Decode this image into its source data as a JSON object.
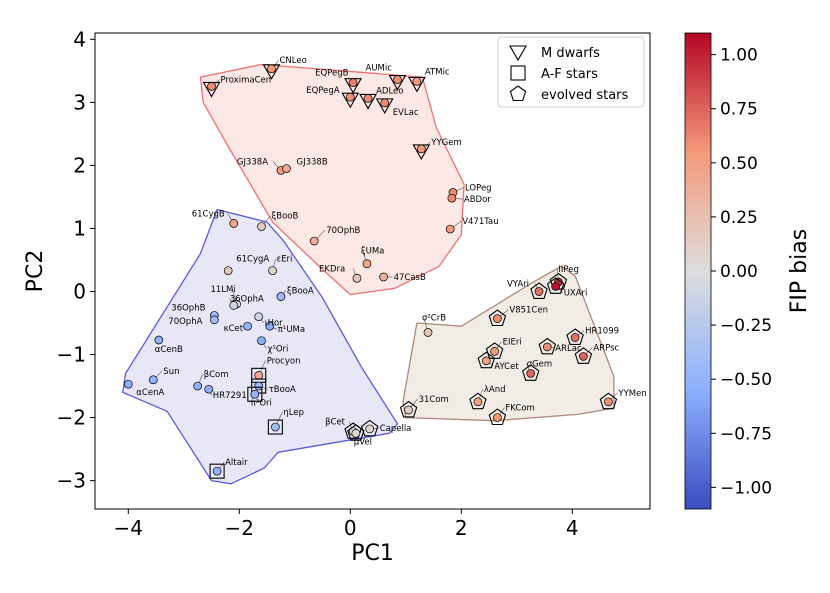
{
  "chart_data": {
    "type": "scatter",
    "xlabel": "PC1",
    "ylabel": "PC2",
    "xlim": [
      -4.6,
      5.4
    ],
    "ylim": [
      -3.45,
      4.1
    ],
    "xticks": [
      {
        "v": -4,
        "label": "−4"
      },
      {
        "v": -2,
        "label": "−2"
      },
      {
        "v": 0,
        "label": "0"
      },
      {
        "v": 2,
        "label": "2"
      },
      {
        "v": 4,
        "label": "4"
      }
    ],
    "yticks": [
      {
        "v": -3,
        "label": "−3"
      },
      {
        "v": -2,
        "label": "−2"
      },
      {
        "v": -1,
        "label": "−1"
      },
      {
        "v": 0,
        "label": "0"
      },
      {
        "v": 1,
        "label": "1"
      },
      {
        "v": 2,
        "label": "2"
      },
      {
        "v": 3,
        "label": "3"
      },
      {
        "v": 4,
        "label": "4"
      }
    ],
    "colorbar": {
      "label": "FIP bias",
      "range": [
        -1.1,
        1.1
      ],
      "colormap": "coolwarm",
      "ticks": [
        {
          "v": 1.0,
          "label": "1.00"
        },
        {
          "v": 0.75,
          "label": "0.75"
        },
        {
          "v": 0.5,
          "label": "0.50"
        },
        {
          "v": 0.25,
          "label": "0.25"
        },
        {
          "v": 0.0,
          "label": "0.00"
        },
        {
          "v": -0.25,
          "label": "−0.25"
        },
        {
          "v": -0.5,
          "label": "−0.50"
        },
        {
          "v": -0.75,
          "label": "−0.75"
        },
        {
          "v": -1.0,
          "label": "−1.00"
        }
      ]
    },
    "legend": {
      "position": "top-right",
      "entries": [
        {
          "marker": "triangle-down",
          "label": "M dwarfs"
        },
        {
          "marker": "square",
          "label": "A-F stars"
        },
        {
          "marker": "pentagon",
          "label": "evolved stars"
        }
      ]
    },
    "groups": [
      {
        "fill": "#fbe4e0",
        "edge": "#f07070",
        "hull": [
          [
            -2.7,
            3.4
          ],
          [
            -1.6,
            3.6
          ],
          [
            1.3,
            3.4
          ],
          [
            1.55,
            2.6
          ],
          [
            2.05,
            1.7
          ],
          [
            2.0,
            0.9
          ],
          [
            1.6,
            0.4
          ],
          [
            0.8,
            0.05
          ],
          [
            0.0,
            -0.05
          ],
          [
            -0.5,
            0.35
          ],
          [
            -1.4,
            1.1
          ],
          [
            -2.2,
            2.3
          ],
          [
            -2.65,
            3.0
          ]
        ]
      },
      {
        "fill": "#e3e3f6",
        "edge": "#5a5ae0",
        "hull": [
          [
            -2.4,
            1.3
          ],
          [
            -1.5,
            1.1
          ],
          [
            -1.2,
            0.8
          ],
          [
            -0.5,
            -0.1
          ],
          [
            0.2,
            -1.2
          ],
          [
            0.85,
            -2.1
          ],
          [
            0.7,
            -2.25
          ],
          [
            -0.3,
            -2.4
          ],
          [
            -1.3,
            -2.55
          ],
          [
            -1.55,
            -2.8
          ],
          [
            -2.15,
            -3.05
          ],
          [
            -2.5,
            -3.0
          ],
          [
            -3.3,
            -1.9
          ],
          [
            -4.1,
            -1.6
          ],
          [
            -4.05,
            -1.3
          ],
          [
            -2.7,
            0.6
          ]
        ]
      },
      {
        "fill": "#f0e9e3",
        "edge": "#b08a78",
        "hull": [
          [
            1.2,
            -0.5
          ],
          [
            2.0,
            -0.55
          ],
          [
            3.3,
            0.15
          ],
          [
            3.8,
            0.4
          ],
          [
            4.05,
            0.25
          ],
          [
            4.75,
            -1.35
          ],
          [
            4.75,
            -1.85
          ],
          [
            4.1,
            -1.95
          ],
          [
            2.6,
            -2.05
          ],
          [
            1.0,
            -2.0
          ],
          [
            0.95,
            -1.75
          ]
        ]
      }
    ],
    "points": [
      {
        "name": "ProximaCen",
        "x": -2.5,
        "y": 3.22,
        "marker": "triangle-down",
        "fip": 0.6
      },
      {
        "name": "CNLeo",
        "x": -1.42,
        "y": 3.5,
        "marker": "triangle-down",
        "fip": 0.55
      },
      {
        "name": "EQPegB",
        "x": 0.05,
        "y": 3.28,
        "marker": "triangle-down",
        "fip": 0.65
      },
      {
        "name": "AUMic",
        "x": 0.85,
        "y": 3.33,
        "marker": "triangle-down",
        "fip": 0.6
      },
      {
        "name": "ATMic",
        "x": 1.2,
        "y": 3.3,
        "marker": "triangle-down",
        "fip": 0.55
      },
      {
        "name": "EQPegA",
        "x": 0.0,
        "y": 3.05,
        "marker": "triangle-down",
        "fip": 0.6
      },
      {
        "name": "ADLeo",
        "x": 0.32,
        "y": 3.03,
        "marker": "triangle-down",
        "fip": 0.6
      },
      {
        "name": "EVLac",
        "x": 0.62,
        "y": 2.96,
        "marker": "triangle-down",
        "fip": 0.6
      },
      {
        "name": "YYGem",
        "x": 1.28,
        "y": 2.23,
        "marker": "triangle-down",
        "fip": 0.55
      },
      {
        "name": "GJ338A",
        "x": -1.25,
        "y": 1.92,
        "marker": "circle",
        "fip": 0.55
      },
      {
        "name": "GJ338B",
        "x": -1.15,
        "y": 1.95,
        "marker": "circle",
        "fip": 0.45
      },
      {
        "name": "LOPeg",
        "x": 1.85,
        "y": 1.57,
        "marker": "circle",
        "fip": 0.6
      },
      {
        "name": "ABDor",
        "x": 1.83,
        "y": 1.48,
        "marker": "circle",
        "fip": 0.6
      },
      {
        "name": "V471Tau",
        "x": 1.8,
        "y": 0.99,
        "marker": "circle",
        "fip": 0.55
      },
      {
        "name": "70OphB",
        "x": -0.65,
        "y": 0.8,
        "marker": "circle",
        "fip": 0.4
      },
      {
        "name": "ξUMa",
        "x": 0.3,
        "y": 0.44,
        "marker": "circle",
        "fip": 0.45
      },
      {
        "name": "47CasB",
        "x": 0.6,
        "y": 0.23,
        "marker": "circle",
        "fip": 0.35
      },
      {
        "name": "EKDra",
        "x": 0.12,
        "y": 0.21,
        "marker": "circle",
        "fip": 0.2
      },
      {
        "name": "61CygB",
        "x": -2.1,
        "y": 1.08,
        "marker": "circle",
        "fip": 0.45
      },
      {
        "name": "ξBooB",
        "x": -1.6,
        "y": 1.03,
        "marker": "circle",
        "fip": 0.15
      },
      {
        "name": "61CygA",
        "x": -2.2,
        "y": 0.33,
        "marker": "circle",
        "fip": 0.2
      },
      {
        "name": "εEri",
        "x": -1.4,
        "y": 0.33,
        "marker": "circle",
        "fip": 0.1
      },
      {
        "name": "11LMi",
        "x": -2.05,
        "y": -0.2,
        "marker": "circle",
        "fip": 0.0
      },
      {
        "name": "36OphA",
        "x": -2.1,
        "y": -0.22,
        "marker": "circle",
        "fip": -0.1
      },
      {
        "name": "ξBooA",
        "x": -1.25,
        "y": -0.08,
        "marker": "circle",
        "fip": -0.45
      },
      {
        "name": "36OphB",
        "x": -2.45,
        "y": -0.38,
        "marker": "circle",
        "fip": -0.4
      },
      {
        "name": "70OphA",
        "x": -2.45,
        "y": -0.45,
        "marker": "circle",
        "fip": -0.45
      },
      {
        "name": "ιHor",
        "x": -1.65,
        "y": -0.4,
        "marker": "circle",
        "fip": -0.1
      },
      {
        "name": "κCet",
        "x": -1.85,
        "y": -0.55,
        "marker": "circle",
        "fip": -0.5
      },
      {
        "name": "π¹UMa",
        "x": -1.45,
        "y": -0.55,
        "marker": "circle",
        "fip": -0.55
      },
      {
        "name": "χ¹Ori",
        "x": -1.6,
        "y": -0.78,
        "marker": "circle",
        "fip": -0.55
      },
      {
        "name": "αCenB",
        "x": -3.45,
        "y": -0.77,
        "marker": "circle",
        "fip": -0.55
      },
      {
        "name": "Sun",
        "x": -3.55,
        "y": -1.4,
        "marker": "circle",
        "fip": -0.5
      },
      {
        "name": "αCenA",
        "x": -4.0,
        "y": -1.47,
        "marker": "circle",
        "fip": -0.55
      },
      {
        "name": "βCom",
        "x": -2.75,
        "y": -1.5,
        "marker": "circle",
        "fip": -0.55
      },
      {
        "name": "HR7291",
        "x": -2.55,
        "y": -1.55,
        "marker": "circle",
        "fip": -0.55
      },
      {
        "name": "Procyon",
        "x": -1.65,
        "y": -1.33,
        "marker": "square",
        "fip": 0.45
      },
      {
        "name": "τBooA",
        "x": -1.65,
        "y": -1.5,
        "marker": "square",
        "fip": -0.45
      },
      {
        "name": "π³Ori",
        "x": -1.72,
        "y": -1.63,
        "marker": "square",
        "fip": -0.5
      },
      {
        "name": "ηLep",
        "x": -1.35,
        "y": -2.15,
        "marker": "square",
        "fip": -0.4
      },
      {
        "name": "Altair",
        "x": -2.4,
        "y": -2.85,
        "marker": "square",
        "fip": -0.5
      },
      {
        "name": "βCet",
        "x": 0.05,
        "y": -2.22,
        "marker": "pentagon",
        "fip": 0.1
      },
      {
        "name": "μVel",
        "x": 0.1,
        "y": -2.25,
        "marker": "pentagon",
        "fip": 0.05
      },
      {
        "name": "Capella",
        "x": 0.35,
        "y": -2.18,
        "marker": "pentagon",
        "fip": 0.1
      },
      {
        "name": "σ²CrB",
        "x": 1.4,
        "y": -0.65,
        "marker": "circle",
        "fip": 0.2
      },
      {
        "name": "31Com",
        "x": 1.05,
        "y": -1.88,
        "marker": "pentagon",
        "fip": 0.15
      },
      {
        "name": "VYAri",
        "x": 3.4,
        "y": 0.0,
        "marker": "pentagon",
        "fip": 0.7
      },
      {
        "name": "IIPeg",
        "x": 3.75,
        "y": 0.15,
        "marker": "pentagon",
        "fip": 0.95
      },
      {
        "name": "UXAri",
        "x": 3.7,
        "y": 0.08,
        "marker": "pentagon",
        "fip": 1.05
      },
      {
        "name": "V851Cen",
        "x": 2.65,
        "y": -0.43,
        "marker": "pentagon",
        "fip": 0.6
      },
      {
        "name": "HR1099",
        "x": 4.05,
        "y": -0.73,
        "marker": "pentagon",
        "fip": 0.7
      },
      {
        "name": "ARLac",
        "x": 3.55,
        "y": -0.88,
        "marker": "pentagon",
        "fip": 0.6
      },
      {
        "name": "EIEri",
        "x": 2.6,
        "y": -0.95,
        "marker": "pentagon",
        "fip": 0.55
      },
      {
        "name": "ARPsc",
        "x": 4.2,
        "y": -1.03,
        "marker": "pentagon",
        "fip": 0.75
      },
      {
        "name": "AYCet",
        "x": 2.45,
        "y": -1.1,
        "marker": "pentagon",
        "fip": 0.5
      },
      {
        "name": "σGem",
        "x": 3.25,
        "y": -1.3,
        "marker": "pentagon",
        "fip": 0.75
      },
      {
        "name": "λAnd",
        "x": 2.3,
        "y": -1.75,
        "marker": "pentagon",
        "fip": 0.5
      },
      {
        "name": "FKCom",
        "x": 2.65,
        "y": -2.0,
        "marker": "pentagon",
        "fip": 0.55
      },
      {
        "name": "YYMen",
        "x": 4.65,
        "y": -1.75,
        "marker": "pentagon",
        "fip": 0.6
      }
    ]
  }
}
